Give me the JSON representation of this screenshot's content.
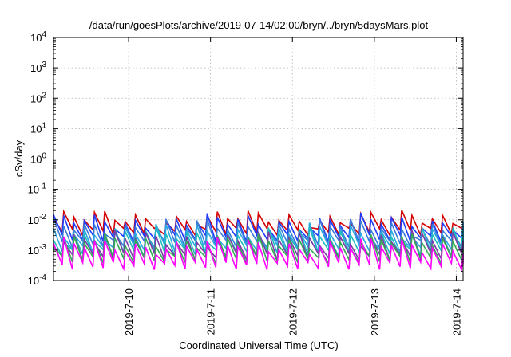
{
  "chart_data": {
    "type": "line",
    "title": "/data/run/goesPlots/archive/2019-07-14/02:00/bryn/../bryn/5daysMars.plot",
    "xlabel": "Coordinated Universal Time (UTC)",
    "ylabel": "cSv/day",
    "yscale": "log",
    "ylim": [
      0.0001,
      10000
    ],
    "y_ticks": [
      {
        "base": "10",
        "exp": "-4"
      },
      {
        "base": "10",
        "exp": "-3"
      },
      {
        "base": "10",
        "exp": "-2"
      },
      {
        "base": "10",
        "exp": "-1"
      },
      {
        "base": "10",
        "exp": "0"
      },
      {
        "base": "10",
        "exp": "1"
      },
      {
        "base": "10",
        "exp": "2"
      },
      {
        "base": "10",
        "exp": "3"
      },
      {
        "base": "10",
        "exp": "4"
      }
    ],
    "xlim": [
      "2019-07-09T02:00",
      "2019-07-14T02:00"
    ],
    "x_ticks": [
      "2019-7-10",
      "2019-7-11",
      "2019-7-12",
      "2019-7-13",
      "2019-7-14"
    ],
    "grid": true,
    "pattern": {
      "description_free": true,
      "cycle_hours": 3,
      "series": [
        {
          "color": "#d40000",
          "peak": 0.011,
          "trough": 0.004
        },
        {
          "color": "#1e3cff",
          "peak": 0.0085,
          "trough": 0.0024
        },
        {
          "color": "#3a7ad8",
          "peak": 0.006,
          "trough": 0.0016
        },
        {
          "color": "#2aa8e0",
          "peak": 0.0042,
          "trough": 0.0011
        },
        {
          "color": "#1fbdbd",
          "peak": 0.0032,
          "trough": 0.0008
        },
        {
          "color": "#7a3aa8",
          "peak": 0.0024,
          "trough": 0.0006
        },
        {
          "color": "#33aa55",
          "peak": 0.0019,
          "trough": 0.00048
        },
        {
          "color": "#ff00ff",
          "peak": 0.0014,
          "trough": 0.0003
        }
      ]
    }
  }
}
